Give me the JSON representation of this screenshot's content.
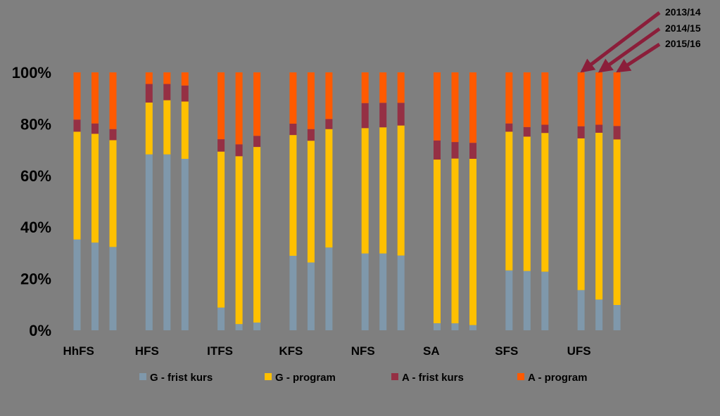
{
  "chart_data": {
    "type": "bar",
    "stacked": true,
    "percent": true,
    "categories": [
      "HhFS",
      "HFS",
      "ITFS",
      "KFS",
      "NFS",
      "SA",
      "SFS",
      "UFS"
    ],
    "years": [
      "2013/14",
      "2014/15",
      "2015/16"
    ],
    "yticks": [
      "0%",
      "20%",
      "40%",
      "60%",
      "80%",
      "100%"
    ],
    "ylim": [
      0,
      100
    ],
    "series": [
      {
        "name": "G - frist kurs",
        "color": "#7f98ab",
        "values": [
          [
            35.2,
            34.0,
            32.3
          ],
          [
            68.2,
            68.2,
            66.5
          ],
          [
            8.8,
            2.4,
            3.0
          ],
          [
            28.9,
            26.3,
            32.1
          ],
          [
            29.8,
            29.8,
            29.0
          ],
          [
            2.7,
            2.7,
            2.0
          ],
          [
            23.2,
            23.0,
            22.7
          ],
          [
            15.6,
            11.9,
            9.8
          ]
        ]
      },
      {
        "name": "G - program",
        "color": "#ffc000",
        "values": [
          [
            41.8,
            42.2,
            41.4
          ],
          [
            20.1,
            21.0,
            22.2
          ],
          [
            60.5,
            65.1,
            68.1
          ],
          [
            46.8,
            47.2,
            45.9
          ],
          [
            48.6,
            48.9,
            50.4
          ],
          [
            63.5,
            63.9,
            64.5
          ],
          [
            53.8,
            52.1,
            53.8
          ],
          [
            58.8,
            64.7,
            64.2
          ]
        ]
      },
      {
        "name": "A - frist kurs",
        "color": "#953044",
        "values": [
          [
            4.7,
            4.0,
            4.3
          ],
          [
            7.2,
            6.3,
            6.2
          ],
          [
            4.8,
            4.6,
            4.3
          ],
          [
            4.4,
            4.5,
            3.9
          ],
          [
            9.7,
            9.5,
            8.8
          ],
          [
            7.4,
            6.4,
            6.2
          ],
          [
            3.2,
            3.7,
            3.2
          ],
          [
            4.7,
            3.1,
            5.2
          ]
        ]
      },
      {
        "name": "A - program",
        "color": "#ff5a00",
        "values": [
          [
            18.3,
            19.8,
            22.0
          ],
          [
            4.5,
            4.5,
            5.1
          ],
          [
            25.9,
            27.9,
            24.6
          ],
          [
            19.9,
            22.0,
            18.1
          ],
          [
            11.9,
            11.8,
            11.8
          ],
          [
            26.4,
            27.0,
            27.3
          ],
          [
            19.8,
            21.2,
            20.3
          ],
          [
            20.9,
            20.3,
            20.8
          ]
        ]
      }
    ],
    "annotations": [
      "2013/14",
      "2014/15",
      "2015/16"
    ],
    "legend_position": "bottom",
    "grid": false
  }
}
